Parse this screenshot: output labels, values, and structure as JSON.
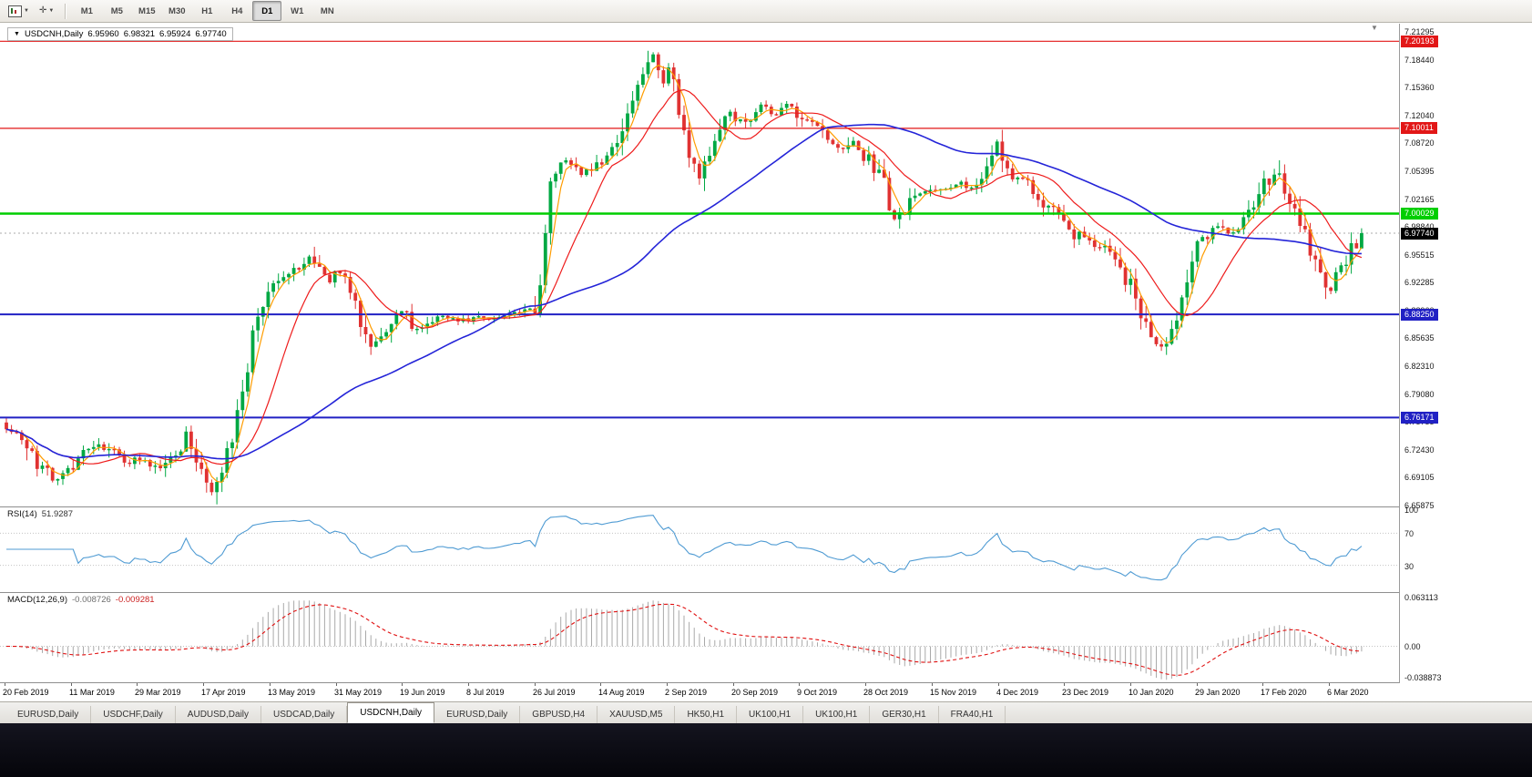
{
  "toolbar": {
    "timeframes": [
      "M1",
      "M5",
      "M15",
      "M30",
      "H1",
      "H4",
      "D1",
      "W1",
      "MN"
    ],
    "active_timeframe": "D1",
    "left_buttons": [
      {
        "name": "chart-type-button",
        "icon": "chart-icon"
      },
      {
        "name": "crosshair-button",
        "icon": "crosshair-icon",
        "glyph": "✛"
      }
    ]
  },
  "chart": {
    "symbol_label": "USDCNH,Daily",
    "ohlc": {
      "open": "6.95960",
      "high": "6.98321",
      "low": "6.95924",
      "close": "6.97740"
    },
    "price_axis": {
      "top_value": 7.21295,
      "bottom_value": 6.65875,
      "labels": [
        "7.21295",
        "7.18440",
        "7.15360",
        "7.12040",
        "7.08720",
        "7.05395",
        "7.02165",
        "6.98840",
        "6.95515",
        "6.92285",
        "6.88960",
        "6.85635",
        "6.82310",
        "6.79080",
        "6.75755",
        "6.72430",
        "6.69105",
        "6.65875"
      ]
    },
    "levels": [
      {
        "value": "7.20193",
        "price": 7.20193,
        "color": "#e21717",
        "width": 1.2
      },
      {
        "value": "7.10011",
        "price": 7.10011,
        "color": "#e21717",
        "width": 1.2
      },
      {
        "value": "7.00029",
        "price": 7.00029,
        "color": "#00ce00",
        "width": 2.6
      },
      {
        "value": "6.88250",
        "price": 6.8825,
        "color": "#2121c4",
        "width": 2
      },
      {
        "value": "6.76171",
        "price": 6.76171,
        "color": "#2121c4",
        "width": 2
      }
    ],
    "current_price": {
      "value": "6.97740",
      "price": 6.9774,
      "box_color": "#000000"
    },
    "date_axis": [
      "20 Feb 2019",
      "11 Mar 2019",
      "29 Mar 2019",
      "17 Apr 2019",
      "13 May 2019",
      "31 May 2019",
      "19 Jun 2019",
      "8 Jul 2019",
      "26 Jul 2019",
      "14 Aug 2019",
      "2 Sep 2019",
      "20 Sep 2019",
      "9 Oct 2019",
      "28 Oct 2019",
      "15 Nov 2019",
      "4 Dec 2019",
      "23 Dec 2019",
      "10 Jan 2020",
      "29 Jan 2020",
      "17 Feb 2020",
      "6 Mar 2020"
    ]
  },
  "indicators": {
    "rsi": {
      "label": "RSI(14)",
      "value": "51.9287",
      "period": 14,
      "axis_labels": [
        "100",
        "70",
        "30"
      ],
      "level_lines": [
        70,
        30
      ],
      "line_color": "#4f9bd3"
    },
    "macd": {
      "label": "MACD(12,26,9)",
      "value_main": "-0.008726",
      "value_signal": "-0.009281",
      "fast": 12,
      "slow": 26,
      "signal": 9,
      "axis_labels": [
        "0.063113",
        "0.00",
        "-0.038873"
      ],
      "max": 0.063113,
      "min": -0.038873,
      "hist_color": "#a9a9a9",
      "signal_color": "#e01010"
    }
  },
  "chart_data": {
    "type": "candlestick",
    "symbol": "USDCNH",
    "timeframe": "Daily",
    "bars": 265,
    "seed": 7,
    "up_color": "#00a843",
    "down_color": "#e03232",
    "moving_averages": [
      {
        "period": 4,
        "color": "#ff9c00",
        "width": 1.2
      },
      {
        "period": 13,
        "color": "#ee1c1c",
        "width": 1.2
      },
      {
        "period": 55,
        "color": "#2424d8",
        "width": 1.6
      }
    ],
    "anchors": [
      [
        0,
        6.752
      ],
      [
        3,
        6.735
      ],
      [
        6,
        6.705
      ],
      [
        9,
        6.692
      ],
      [
        12,
        6.7
      ],
      [
        15,
        6.718
      ],
      [
        19,
        6.728
      ],
      [
        23,
        6.713
      ],
      [
        27,
        6.708
      ],
      [
        30,
        6.7
      ],
      [
        33,
        6.722
      ],
      [
        35,
        6.742
      ],
      [
        37,
        6.712
      ],
      [
        39,
        6.69
      ],
      [
        40,
        6.676
      ],
      [
        42,
        6.7
      ],
      [
        44,
        6.732
      ],
      [
        46,
        6.788
      ],
      [
        48,
        6.856
      ],
      [
        50,
        6.896
      ],
      [
        53,
        6.918
      ],
      [
        56,
        6.936
      ],
      [
        59,
        6.946
      ],
      [
        61,
        6.93
      ],
      [
        63,
        6.922
      ],
      [
        65,
        6.936
      ],
      [
        67,
        6.908
      ],
      [
        69,
        6.878
      ],
      [
        71,
        6.85
      ],
      [
        73,
        6.858
      ],
      [
        75,
        6.88
      ],
      [
        77,
        6.886
      ],
      [
        79,
        6.872
      ],
      [
        81,
        6.864
      ],
      [
        84,
        6.88
      ],
      [
        88,
        6.877
      ],
      [
        92,
        6.88
      ],
      [
        96,
        6.879
      ],
      [
        100,
        6.884
      ],
      [
        103,
        6.89
      ],
      [
        104,
        6.916
      ],
      [
        106,
        7.046
      ],
      [
        108,
        7.058
      ],
      [
        110,
        7.06
      ],
      [
        112,
        7.048
      ],
      [
        114,
        7.052
      ],
      [
        116,
        7.062
      ],
      [
        118,
        7.076
      ],
      [
        120,
        7.092
      ],
      [
        122,
        7.128
      ],
      [
        124,
        7.162
      ],
      [
        126,
        7.186
      ],
      [
        127,
        7.17
      ],
      [
        128,
        7.15
      ],
      [
        129,
        7.168
      ],
      [
        130,
        7.148
      ],
      [
        131,
        7.116
      ],
      [
        133,
        7.06
      ],
      [
        135,
        7.046
      ],
      [
        137,
        7.076
      ],
      [
        139,
        7.096
      ],
      [
        141,
        7.118
      ],
      [
        143,
        7.108
      ],
      [
        145,
        7.116
      ],
      [
        147,
        7.128
      ],
      [
        149,
        7.118
      ],
      [
        151,
        7.122
      ],
      [
        153,
        7.126
      ],
      [
        155,
        7.112
      ],
      [
        158,
        7.098
      ],
      [
        161,
        7.082
      ],
      [
        163,
        7.072
      ],
      [
        165,
        7.082
      ],
      [
        167,
        7.07
      ],
      [
        169,
        7.052
      ],
      [
        171,
        7.032
      ],
      [
        173,
        6.988
      ],
      [
        175,
        7.002
      ],
      [
        177,
        7.018
      ],
      [
        179,
        7.026
      ],
      [
        182,
        7.03
      ],
      [
        184,
        7.036
      ],
      [
        186,
        7.04
      ],
      [
        188,
        7.028
      ],
      [
        190,
        7.036
      ],
      [
        192,
        7.062
      ],
      [
        193,
        7.084
      ],
      [
        194,
        7.064
      ],
      [
        195,
        7.048
      ],
      [
        197,
        7.04
      ],
      [
        199,
        7.036
      ],
      [
        202,
        7.014
      ],
      [
        205,
        6.998
      ],
      [
        207,
        6.984
      ],
      [
        209,
        6.972
      ],
      [
        211,
        6.964
      ],
      [
        214,
        6.958
      ],
      [
        216,
        6.948
      ],
      [
        218,
        6.926
      ],
      [
        220,
        6.902
      ],
      [
        222,
        6.868
      ],
      [
        224,
        6.846
      ],
      [
        226,
        6.854
      ],
      [
        228,
        6.88
      ],
      [
        230,
        6.924
      ],
      [
        232,
        6.962
      ],
      [
        234,
        6.974
      ],
      [
        236,
        6.984
      ],
      [
        238,
        6.976
      ],
      [
        240,
        6.986
      ],
      [
        242,
        7.0
      ],
      [
        244,
        7.022
      ],
      [
        246,
        7.042
      ],
      [
        247,
        7.048
      ],
      [
        248,
        7.038
      ],
      [
        250,
        7.012
      ],
      [
        252,
        6.99
      ],
      [
        254,
        6.96
      ],
      [
        256,
        6.928
      ],
      [
        258,
        6.908
      ],
      [
        260,
        6.938
      ],
      [
        262,
        6.958
      ],
      [
        264,
        6.977
      ]
    ]
  },
  "tabs": {
    "active_index": 4,
    "items": [
      "EURUSD,Daily",
      "USDCHF,Daily",
      "AUDUSD,Daily",
      "USDCAD,Daily",
      "USDCNH,Daily",
      "EURUSD,Daily",
      "GBPUSD,H4",
      "XAUUSD,M5",
      "HK50,H1",
      "UK100,H1",
      "UK100,H1",
      "GER30,H1",
      "FRA40,H1"
    ]
  }
}
